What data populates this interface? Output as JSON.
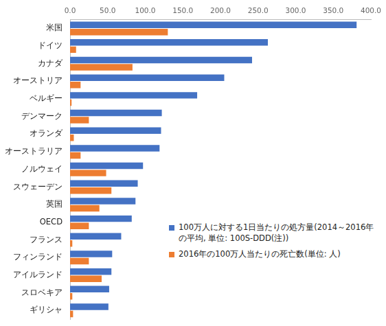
{
  "chart_data": {
    "type": "bar",
    "orientation": "horizontal",
    "categories": [
      "米国",
      "ドイツ",
      "カナダ",
      "オーストリア",
      "ベルギー",
      "デンマーク",
      "オランダ",
      "オーストラリア",
      "ノルウェイ",
      "スウェーデン",
      "英国",
      "OECD",
      "フランス",
      "フィンランド",
      "アイルランド",
      "スロベキア",
      "ギリシャ"
    ],
    "series": [
      {
        "name": "100万人に対する1日当たりの処方量(2014～2016年の平均, 単位: 100S-DDD(注))",
        "color": "#4472c4",
        "values": [
          381,
          263,
          242,
          205,
          169,
          122,
          121,
          119,
          97,
          90,
          87,
          82,
          68,
          56,
          55,
          52,
          51
        ]
      },
      {
        "name": "2016年の100万人当たりの死亡数(単位: 人)",
        "color": "#ed7d31",
        "values": [
          130,
          8,
          83,
          14,
          2,
          25,
          5,
          14,
          48,
          55,
          39,
          25,
          3,
          25,
          42,
          3,
          4
        ]
      }
    ],
    "xlim": [
      0,
      400
    ],
    "xticks": [
      {
        "value": 0,
        "label": "0.0"
      },
      {
        "value": 50,
        "label": "50.0"
      },
      {
        "value": 100,
        "label": "100.0"
      },
      {
        "value": 150,
        "label": "150.0"
      },
      {
        "value": 200,
        "label": "200.0"
      },
      {
        "value": 250,
        "label": "250.0"
      },
      {
        "value": 300,
        "label": "300.0"
      },
      {
        "value": 350,
        "label": "350.0"
      },
      {
        "value": 400,
        "label": "400.0"
      }
    ],
    "grid": false,
    "legend": "lower right"
  }
}
